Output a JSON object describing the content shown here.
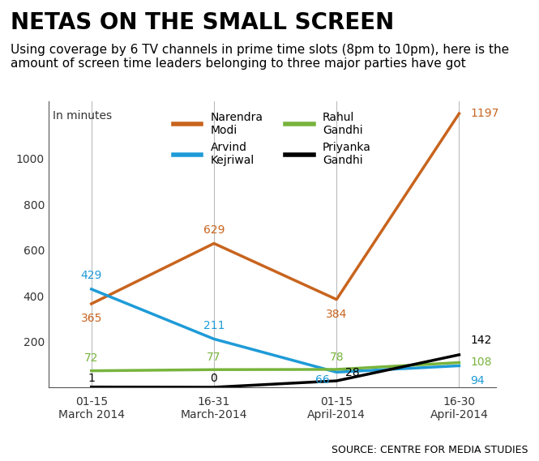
{
  "chart_data": {
    "type": "line",
    "title": "NETAS ON THE SMALL SCREEN",
    "subtitle": "Using coverage by 6 TV channels in prime time slots (8pm to 10pm), here is the amount of screen time leaders belonging to three major parties have got",
    "y_label": "In minutes",
    "source": "SOURCE: CENTRE FOR MEDIA STUDIES",
    "categories": [
      "01-15\nMarch 2014",
      "16-31\nMarch-2014",
      "01-15\nApril-2014",
      "16-30\nApril-2014"
    ],
    "series": [
      {
        "name": "Narendra\nModi",
        "color": "#c8641e",
        "values": [
          365,
          629,
          384,
          1197
        ]
      },
      {
        "name": "Arvind\nKejriwal",
        "color": "#1e9bd7",
        "values": [
          429,
          211,
          66,
          94
        ]
      },
      {
        "name": "Rahul\nGandhi",
        "color": "#78b43c",
        "values": [
          72,
          77,
          78,
          108
        ]
      },
      {
        "name": "Priyanka\nGandhi",
        "color": "#000000",
        "values": [
          1,
          0,
          28,
          142
        ]
      }
    ],
    "ylim": [
      0,
      1250
    ],
    "yticks": [
      200,
      400,
      600,
      800,
      1000
    ],
    "grid": true,
    "legend": "upper center",
    "data_labels": true
  }
}
